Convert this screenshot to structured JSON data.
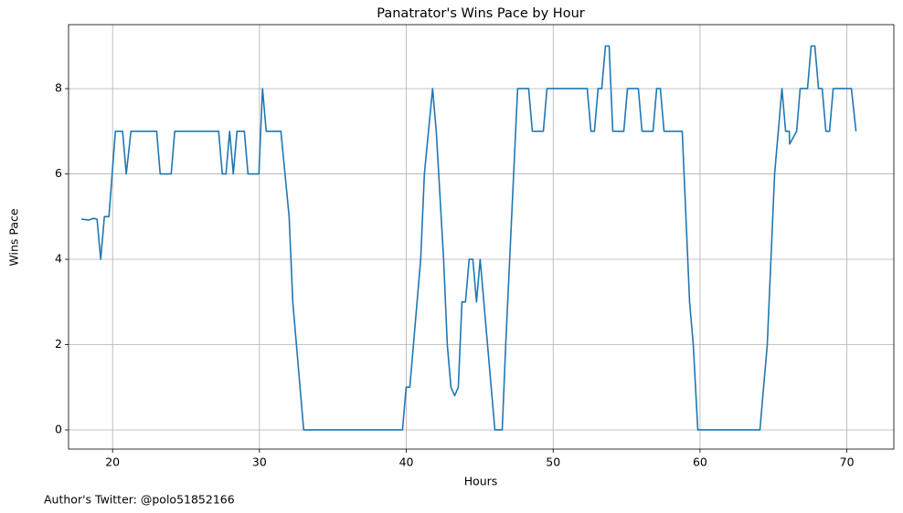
{
  "chart_data": {
    "type": "line",
    "title": "Panatrator's Wins Pace by Hour",
    "xlabel": "Hours",
    "ylabel": "Wins Pace",
    "annotation": "Author's Twitter: @polo51852166",
    "x": [
      17.88,
      18.38,
      18.7,
      18.94,
      19.19,
      19.44,
      19.75,
      20.19,
      20.68,
      20.93,
      21.25,
      23.0,
      23.24,
      23.99,
      24.23,
      27.22,
      27.47,
      27.72,
      27.97,
      28.22,
      28.47,
      28.97,
      29.22,
      29.96,
      30.21,
      30.46,
      31.46,
      32.02,
      32.27,
      33.01,
      39.74,
      39.99,
      40.24,
      40.98,
      41.23,
      41.79,
      42.04,
      42.54,
      42.79,
      43.04,
      43.29,
      43.54,
      43.79,
      44.03,
      44.28,
      44.53,
      44.78,
      45.03,
      46.03,
      46.53,
      46.77,
      47.58,
      48.33,
      48.58,
      49.33,
      49.58,
      52.32,
      52.57,
      52.81,
      53.06,
      53.31,
      53.56,
      53.81,
      54.06,
      54.81,
      55.06,
      55.8,
      56.05,
      56.8,
      57.05,
      57.3,
      57.55,
      58.79,
      59.29,
      59.54,
      59.85,
      64.08,
      64.58,
      65.08,
      65.58,
      65.83,
      66.08,
      66.1,
      66.58,
      66.82,
      67.32,
      67.57,
      67.82,
      68.07,
      68.32,
      68.57,
      68.82,
      69.07,
      70.31,
      70.62
    ],
    "series": [
      {
        "name": "Wins Pace",
        "color": "#1f77b4",
        "values": [
          4.94,
          4.92,
          4.96,
          4.94,
          4.0,
          5.0,
          5.0,
          7.0,
          7.0,
          6.0,
          7.0,
          7.0,
          6.0,
          6.0,
          7.0,
          7.0,
          6.0,
          6.0,
          7.0,
          6.0,
          7.0,
          7.0,
          6.0,
          6.0,
          8.0,
          7.0,
          7.0,
          5.0,
          3.0,
          0,
          0,
          1.0,
          1.0,
          4.0,
          6.0,
          8.0,
          7.0,
          4.0,
          2.0,
          1.0,
          0.8,
          1.0,
          3.0,
          3.0,
          4.0,
          4.0,
          3.0,
          4.0,
          0,
          0,
          2.0,
          8.0,
          8.0,
          7.0,
          7.0,
          8.0,
          8.0,
          7.0,
          7.0,
          8.0,
          8.0,
          9.0,
          9.0,
          7.0,
          7.0,
          8.0,
          8.0,
          7.0,
          7.0,
          8.0,
          8.0,
          7.0,
          7.0,
          3.0,
          2.0,
          0,
          0,
          2.0,
          6.0,
          8.0,
          7.0,
          7.0,
          6.7,
          7.0,
          8.0,
          8.0,
          9.0,
          9.0,
          8.0,
          8.0,
          7.0,
          7.0,
          8.0,
          8.0,
          7.0
        ]
      }
    ],
    "xlim": [
      17.0,
      73.2
    ],
    "ylim": [
      -0.45,
      9.5
    ],
    "xticks": [
      20,
      30,
      40,
      50,
      60,
      70
    ],
    "yticks": [
      0,
      2,
      4,
      6,
      8
    ],
    "grid": true
  }
}
